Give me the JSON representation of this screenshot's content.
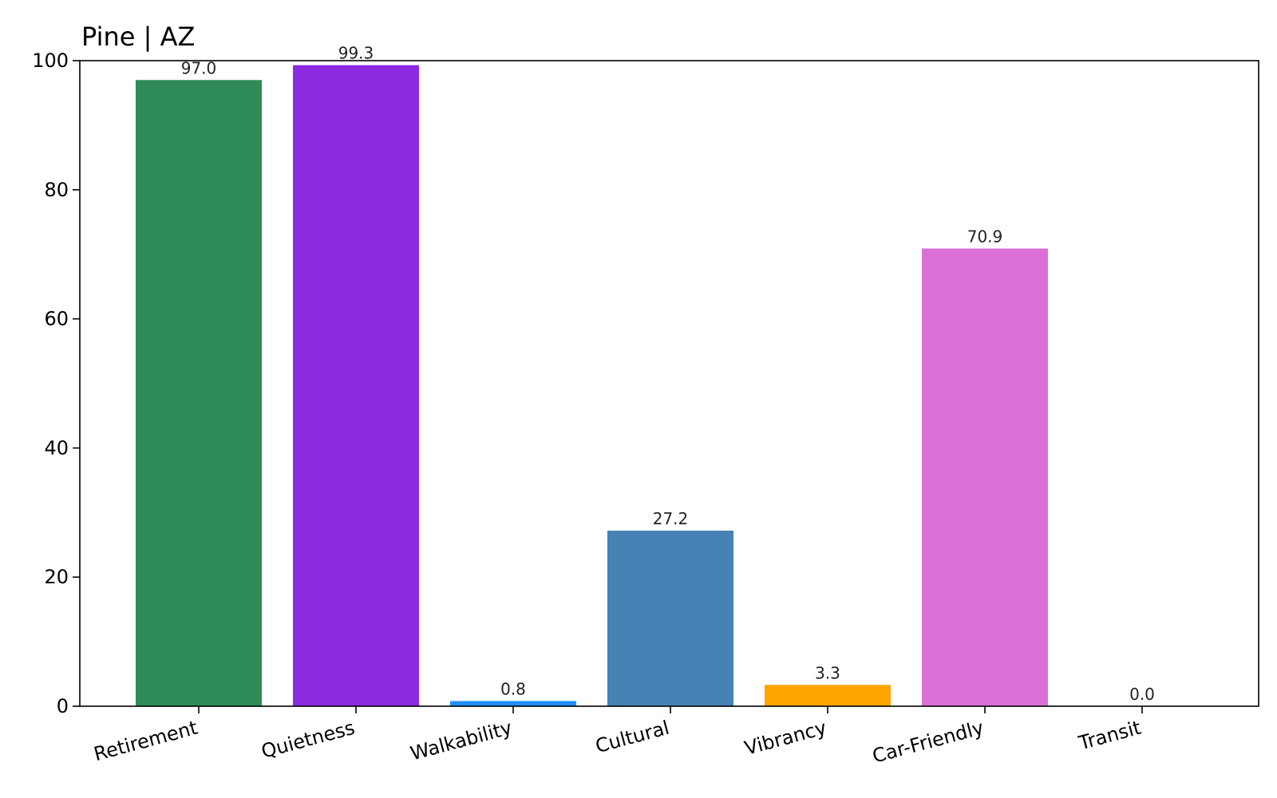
{
  "chart_data": {
    "type": "bar",
    "title": "Pine | AZ",
    "xlabel": "",
    "ylabel": "",
    "categories": [
      "Retirement",
      "Quietness",
      "Walkability",
      "Cultural",
      "Vibrancy",
      "Car-Friendly",
      "Transit"
    ],
    "values": [
      97.0,
      99.3,
      0.8,
      27.2,
      3.3,
      70.9,
      0.0
    ],
    "value_labels": [
      "97.0",
      "99.3",
      "0.8",
      "27.2",
      "3.3",
      "70.9",
      "0.0"
    ],
    "colors": [
      "#2e8b57",
      "#8a2be2",
      "#1e90ff",
      "#4682b4",
      "#ffa500",
      "#da70d6",
      "#708090"
    ],
    "ylim": [
      0,
      100
    ],
    "yticks": [
      0,
      20,
      40,
      60,
      80,
      100
    ],
    "ytick_labels": [
      "0",
      "20",
      "40",
      "60",
      "80",
      "100"
    ],
    "grid": false,
    "legend": "none"
  }
}
